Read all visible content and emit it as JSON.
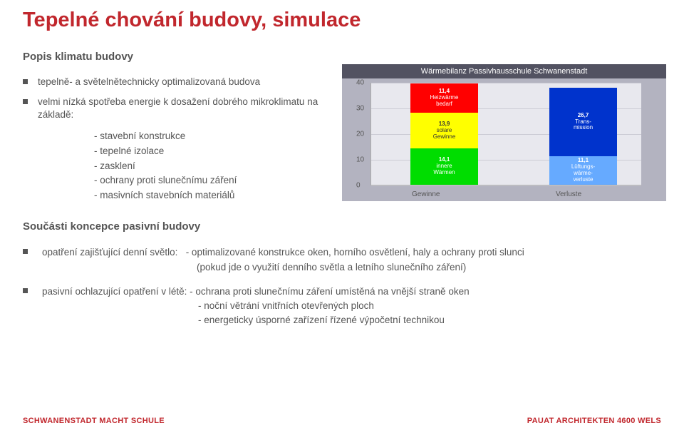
{
  "title": "Tepelné chování budovy, simulace",
  "subtitle1": "Popis klimatu budovy",
  "bullets": {
    "b1": "tepelně- a světelnětechnicky optimalizovaná budova",
    "b2": "velmi nízká spotřeba energie k dosažení dobrého mikroklimatu na základě:",
    "ind1": "- stavební konstrukce",
    "ind2": "- tepelné izolace",
    "ind3": "- zasklení",
    "ind4": "- ochrany proti slunečnímu záření",
    "ind5": "- masivních stavebních materiálů"
  },
  "chart": {
    "title": "Wärmebilanz Passivhausschule Schwanenstadt",
    "ylim_max": 40,
    "yticks": [
      0,
      10,
      20,
      30,
      40
    ],
    "bg": "#b3b3c0",
    "plot_bg": "#e8e8ee",
    "grid_color": "#ccccd5",
    "bar1": {
      "x_label": "Gewinne",
      "total": 39.4,
      "segs": [
        {
          "v": 14.1,
          "lab1": "14,1",
          "lab2": "innere",
          "lab3": "Wärmen",
          "color": "#00dd00"
        },
        {
          "v": 13.9,
          "lab1": "13,9",
          "lab2": "solare",
          "lab3": "Gewinne",
          "color": "#ffff00",
          "text": "#333333"
        },
        {
          "v": 11.4,
          "lab1": "11,4",
          "lab2": "Heizwärme",
          "lab3": "bedarf",
          "color": "#ff0000"
        }
      ]
    },
    "bar2": {
      "x_label": "Verluste",
      "total": 37.8,
      "segs": [
        {
          "v": 11.1,
          "lab1": "11,1",
          "lab2": "Lüftungs-",
          "lab3": "wärme-",
          "lab4": "verluste",
          "color": "#66aaff"
        },
        {
          "v": 26.7,
          "lab1": "26,7",
          "lab2": "Trans-",
          "lab3": "mission",
          "color": "#0033cc"
        }
      ]
    }
  },
  "subtitle2": "Součásti koncepce pasivní budovy",
  "lower": {
    "i1_label": "opatření zajišťující denní světlo:",
    "i1_t1": "- optimalizované konstrukce oken, horního osvětlení, haly a ochrany proti slunci",
    "i1_t2": "   (pokud jde o využití denního světla a letního slunečního záření)",
    "i2_label": "pasivní ochlazující opatření v létě:",
    "i2_t1": " - ochrana proti slunečnímu záření umístěná na vnější straně oken",
    "i2_t2": "- noční větrání vnitřních otevřených ploch",
    "i2_t3": "- energeticky úsporné zařízení řízené výpočetní technikou"
  },
  "footer": {
    "left": "SCHWANENSTADT MACHT SCHULE",
    "right": "PAUAT ARCHITEKTEN 4600 WELS"
  }
}
